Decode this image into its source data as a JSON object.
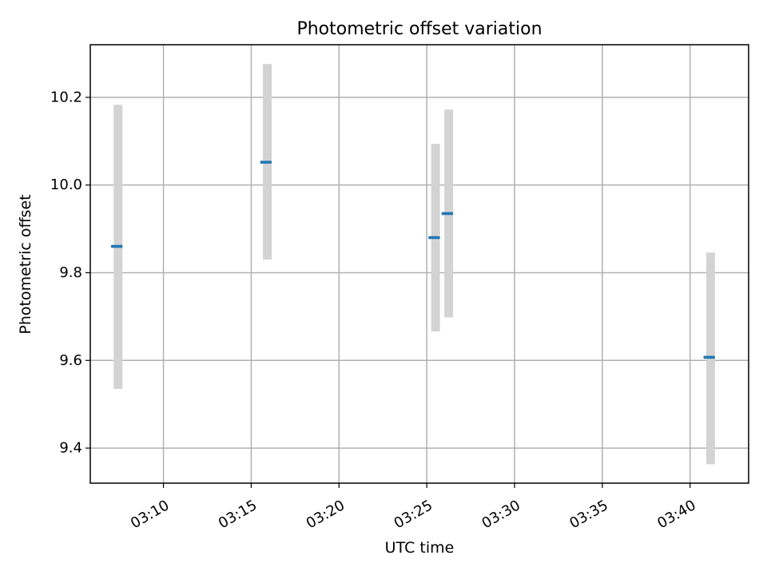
{
  "chart_data": {
    "type": "scatter",
    "title": "Photometric offset variation",
    "xlabel": "UTC time",
    "ylabel": "Photometric offset",
    "x_ticks": [
      "03:10",
      "03:15",
      "03:20",
      "03:25",
      "03:30",
      "03:35",
      "03:40"
    ],
    "y_ticks": [
      "9.4",
      "9.6",
      "9.8",
      "10.0",
      "10.2"
    ],
    "xlim": [
      "03:05:50",
      "03:43:20"
    ],
    "ylim": [
      9.32,
      10.32
    ],
    "grid": true,
    "colors": {
      "point": "#1f77b4",
      "errorbar": "#d3d3d3",
      "grid": "#b0b0b0"
    },
    "points": [
      {
        "x": "03:07:25",
        "y": 9.86,
        "err_low": 9.535,
        "err_high": 10.183
      },
      {
        "x": "03:15:55",
        "y": 10.052,
        "err_low": 9.83,
        "err_high": 10.276
      },
      {
        "x": "03:25:30",
        "y": 9.88,
        "err_low": 9.666,
        "err_high": 10.094
      },
      {
        "x": "03:26:15",
        "y": 9.935,
        "err_low": 9.698,
        "err_high": 10.172
      },
      {
        "x": "03:41:10",
        "y": 9.607,
        "err_low": 9.363,
        "err_high": 9.846
      }
    ]
  }
}
